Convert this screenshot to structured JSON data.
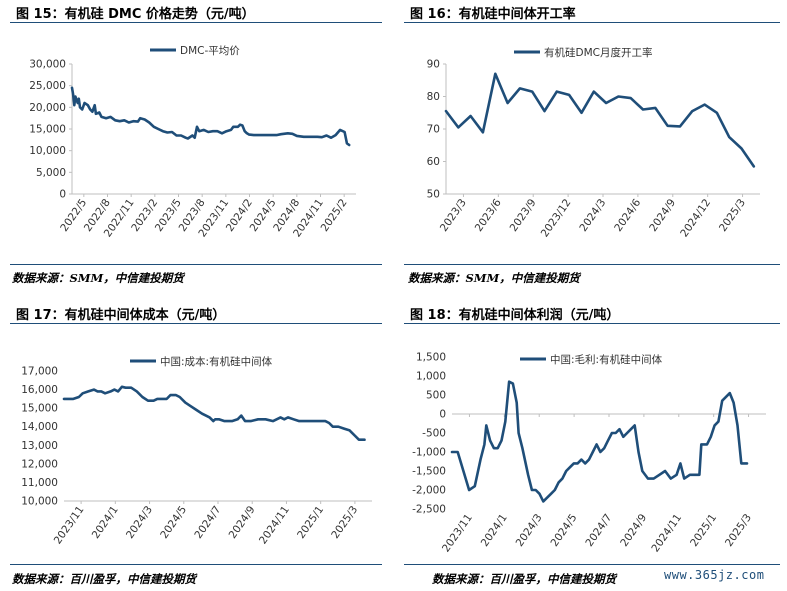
{
  "charts": [
    {
      "title": "图 15：有机硅 DMC 价格走势（元/吨）",
      "source": "数据来源：SMM，中信建投期货"
    },
    {
      "title": "图 16：有机硅中间体开工率",
      "source": "数据来源：SMM，中信建投期货"
    },
    {
      "title": "图 17：有机硅中间体成本（元/吨）",
      "source": "数据来源：百川盈孚，中信建投期货"
    },
    {
      "title": "图 18：有机硅中间体利润（元/吨）",
      "source": "数据来源：百川盈孚，中信建投期货"
    }
  ],
  "watermark": "www.365jz.com",
  "colors": {
    "series": "#1f4e79",
    "axis": "#bfbfbf",
    "rule": "#1f4e79"
  },
  "chart_data": [
    {
      "type": "line",
      "title": "图 15：有机硅 DMC 价格走势（元/吨）",
      "legend": "top-left",
      "series": [
        {
          "name": "DMC-平均价",
          "color": "#1f4e79"
        }
      ],
      "x_ticks": [
        "2022/5",
        "2022/8",
        "2022/11",
        "2023/2",
        "2023/5",
        "2023/8",
        "2023/11",
        "2024/2",
        "2024/5",
        "2024/8",
        "2024/11",
        "2025/2"
      ],
      "x_range": [
        0,
        12.5
      ],
      "y_ticks": [
        "0",
        "5,000",
        "10,000",
        "15,000",
        "20,000",
        "25,000",
        "30,000"
      ],
      "y_range": [
        0,
        30000
      ],
      "points": [
        [
          0,
          24500
        ],
        [
          0.05,
          23000
        ],
        [
          0.1,
          20500
        ],
        [
          0.15,
          22500
        ],
        [
          0.25,
          21000
        ],
        [
          0.3,
          22000
        ],
        [
          0.35,
          20000
        ],
        [
          0.45,
          19500
        ],
        [
          0.55,
          21000
        ],
        [
          0.7,
          20500
        ],
        [
          0.8,
          19500
        ],
        [
          0.9,
          19000
        ],
        [
          1.0,
          20500
        ],
        [
          1.05,
          18500
        ],
        [
          1.2,
          18800
        ],
        [
          1.3,
          17800
        ],
        [
          1.5,
          17500
        ],
        [
          1.7,
          17800
        ],
        [
          1.9,
          17000
        ],
        [
          2.1,
          16800
        ],
        [
          2.3,
          17000
        ],
        [
          2.5,
          16500
        ],
        [
          2.7,
          16800
        ],
        [
          2.9,
          16700
        ],
        [
          3.0,
          17500
        ],
        [
          3.2,
          17200
        ],
        [
          3.4,
          16500
        ],
        [
          3.6,
          15500
        ],
        [
          3.8,
          15000
        ],
        [
          4.0,
          14500
        ],
        [
          4.2,
          14200
        ],
        [
          4.4,
          14300
        ],
        [
          4.6,
          13500
        ],
        [
          4.8,
          13500
        ],
        [
          5.0,
          13000
        ],
        [
          5.1,
          12800
        ],
        [
          5.3,
          13500
        ],
        [
          5.4,
          13000
        ],
        [
          5.5,
          15500
        ],
        [
          5.6,
          14500
        ],
        [
          5.8,
          14800
        ],
        [
          6.0,
          14300
        ],
        [
          6.2,
          14500
        ],
        [
          6.4,
          14500
        ],
        [
          6.6,
          14000
        ],
        [
          6.8,
          14500
        ],
        [
          7.0,
          14800
        ],
        [
          7.1,
          15500
        ],
        [
          7.3,
          15500
        ],
        [
          7.4,
          16000
        ],
        [
          7.5,
          15800
        ],
        [
          7.6,
          14500
        ],
        [
          7.7,
          14000
        ],
        [
          7.8,
          13700
        ],
        [
          8.0,
          13600
        ],
        [
          8.5,
          13600
        ],
        [
          9.0,
          13600
        ],
        [
          9.2,
          13800
        ],
        [
          9.5,
          14000
        ],
        [
          9.7,
          13900
        ],
        [
          9.9,
          13400
        ],
        [
          10.2,
          13200
        ],
        [
          10.8,
          13200
        ],
        [
          11.0,
          13100
        ],
        [
          11.2,
          13500
        ],
        [
          11.4,
          13000
        ],
        [
          11.6,
          13600
        ],
        [
          11.8,
          14800
        ],
        [
          12.0,
          14300
        ],
        [
          12.1,
          11700
        ],
        [
          12.2,
          11300
        ]
      ]
    },
    {
      "type": "line",
      "title": "图 16：有机硅中间体开工率",
      "legend": "top-left",
      "series": [
        {
          "name": "有机硅DMC月度开工率",
          "color": "#1f4e79"
        }
      ],
      "x_ticks": [
        "2023/3",
        "2023/6",
        "2023/9",
        "2023/12",
        "2024/3",
        "2024/6",
        "2024/9",
        "2024/12",
        "2025/3"
      ],
      "x_range": [
        0,
        25.5
      ],
      "y_ticks": [
        "50",
        "60",
        "70",
        "80",
        "90"
      ],
      "y_range": [
        50,
        90
      ],
      "points": [
        [
          0,
          75.5
        ],
        [
          1,
          70.5
        ],
        [
          2,
          74
        ],
        [
          3,
          69
        ],
        [
          4,
          87
        ],
        [
          5,
          78
        ],
        [
          6,
          82.5
        ],
        [
          7,
          81.5
        ],
        [
          8,
          75.5
        ],
        [
          9,
          81.5
        ],
        [
          10,
          80.5
        ],
        [
          11,
          75
        ],
        [
          12,
          81.5
        ],
        [
          13,
          78
        ],
        [
          14,
          80
        ],
        [
          15,
          79.5
        ],
        [
          16,
          76
        ],
        [
          17,
          76.5
        ],
        [
          18,
          71
        ],
        [
          19,
          70.8
        ],
        [
          20,
          75.5
        ],
        [
          21,
          77.5
        ],
        [
          22,
          75
        ],
        [
          23,
          67.5
        ],
        [
          24,
          64
        ],
        [
          25,
          58.5
        ]
      ]
    },
    {
      "type": "line",
      "title": "图 17：有机硅中间体成本（元/吨）",
      "legend": "top-center",
      "series": [
        {
          "name": "中国:成本:有机硅中间体",
          "color": "#1f4e79"
        }
      ],
      "x_ticks": [
        "2023/11",
        "2024/1",
        "2024/3",
        "2024/5",
        "2024/7",
        "2024/9",
        "2024/11",
        "2025/1",
        "2025/3"
      ],
      "x_range": [
        0,
        16.5
      ],
      "y_ticks": [
        "10,000",
        "11,000",
        "12,000",
        "13,000",
        "14,000",
        "15,000",
        "16,000",
        "17,000"
      ],
      "y_range": [
        10000,
        17000
      ],
      "points": [
        [
          0,
          15500
        ],
        [
          0.5,
          15500
        ],
        [
          0.8,
          15600
        ],
        [
          1.0,
          15800
        ],
        [
          1.3,
          15900
        ],
        [
          1.6,
          16000
        ],
        [
          1.8,
          15900
        ],
        [
          2.0,
          15900
        ],
        [
          2.2,
          15800
        ],
        [
          2.5,
          15900
        ],
        [
          2.7,
          16000
        ],
        [
          2.9,
          15900
        ],
        [
          3.1,
          16150
        ],
        [
          3.3,
          16100
        ],
        [
          3.6,
          16100
        ],
        [
          3.9,
          15900
        ],
        [
          4.2,
          15600
        ],
        [
          4.5,
          15400
        ],
        [
          4.8,
          15400
        ],
        [
          5.0,
          15500
        ],
        [
          5.2,
          15500
        ],
        [
          5.5,
          15500
        ],
        [
          5.7,
          15700
        ],
        [
          6.0,
          15700
        ],
        [
          6.2,
          15600
        ],
        [
          6.5,
          15300
        ],
        [
          6.8,
          15100
        ],
        [
          7.1,
          14900
        ],
        [
          7.4,
          14700
        ],
        [
          7.6,
          14600
        ],
        [
          7.8,
          14500
        ],
        [
          8.0,
          14300
        ],
        [
          8.1,
          14400
        ],
        [
          8.3,
          14400
        ],
        [
          8.6,
          14300
        ],
        [
          9.0,
          14300
        ],
        [
          9.3,
          14400
        ],
        [
          9.5,
          14600
        ],
        [
          9.7,
          14300
        ],
        [
          10.0,
          14300
        ],
        [
          10.4,
          14400
        ],
        [
          10.8,
          14400
        ],
        [
          11.2,
          14300
        ],
        [
          11.6,
          14500
        ],
        [
          11.8,
          14400
        ],
        [
          12.0,
          14500
        ],
        [
          12.3,
          14400
        ],
        [
          12.6,
          14300
        ],
        [
          13.0,
          14300
        ],
        [
          13.5,
          14300
        ],
        [
          14.0,
          14300
        ],
        [
          14.2,
          14200
        ],
        [
          14.4,
          14000
        ],
        [
          14.7,
          14000
        ],
        [
          15.0,
          13900
        ],
        [
          15.3,
          13800
        ],
        [
          15.6,
          13500
        ],
        [
          15.8,
          13300
        ],
        [
          16.1,
          13300
        ]
      ]
    },
    {
      "type": "line",
      "title": "图 18：有机硅中间体利润（元/吨）",
      "legend": "top-center",
      "series": [
        {
          "name": "中国:毛利:有机硅中间体",
          "color": "#1f4e79"
        }
      ],
      "x_ticks": [
        "2023/11",
        "2024/1",
        "2024/3",
        "2024/5",
        "2024/7",
        "2024/9",
        "2024/11",
        "2025/1",
        "2025/3"
      ],
      "x_range": [
        0,
        16.5
      ],
      "y_ticks": [
        "-2,500",
        "-2,000",
        "-1,500",
        "-1,000",
        "-500",
        "0",
        "500",
        "1,000",
        "1,500"
      ],
      "y_range": [
        -2500,
        1500
      ],
      "points": [
        [
          0,
          -1000
        ],
        [
          0.3,
          -1000
        ],
        [
          0.6,
          -1500
        ],
        [
          0.9,
          -2000
        ],
        [
          1.2,
          -1900
        ],
        [
          1.5,
          -1200
        ],
        [
          1.7,
          -800
        ],
        [
          1.8,
          -300
        ],
        [
          2.0,
          -700
        ],
        [
          2.2,
          -900
        ],
        [
          2.4,
          -900
        ],
        [
          2.6,
          -700
        ],
        [
          2.8,
          -200
        ],
        [
          3.0,
          850
        ],
        [
          3.2,
          800
        ],
        [
          3.4,
          300
        ],
        [
          3.5,
          -500
        ],
        [
          3.7,
          -900
        ],
        [
          4.0,
          -1600
        ],
        [
          4.2,
          -2000
        ],
        [
          4.4,
          -2000
        ],
        [
          4.6,
          -2100
        ],
        [
          4.8,
          -2300
        ],
        [
          5.0,
          -2200
        ],
        [
          5.2,
          -2100
        ],
        [
          5.4,
          -2000
        ],
        [
          5.6,
          -1800
        ],
        [
          5.8,
          -1700
        ],
        [
          6.0,
          -1500
        ],
        [
          6.2,
          -1400
        ],
        [
          6.4,
          -1300
        ],
        [
          6.6,
          -1300
        ],
        [
          6.8,
          -1200
        ],
        [
          7.0,
          -1300
        ],
        [
          7.2,
          -1200
        ],
        [
          7.4,
          -1000
        ],
        [
          7.6,
          -800
        ],
        [
          7.8,
          -1000
        ],
        [
          8.0,
          -900
        ],
        [
          8.2,
          -700
        ],
        [
          8.4,
          -500
        ],
        [
          8.6,
          -500
        ],
        [
          8.8,
          -400
        ],
        [
          9.0,
          -600
        ],
        [
          9.2,
          -500
        ],
        [
          9.4,
          -400
        ],
        [
          9.6,
          -300
        ],
        [
          9.8,
          -1000
        ],
        [
          10.0,
          -1500
        ],
        [
          10.3,
          -1700
        ],
        [
          10.6,
          -1700
        ],
        [
          10.9,
          -1600
        ],
        [
          11.2,
          -1500
        ],
        [
          11.5,
          -1700
        ],
        [
          11.8,
          -1600
        ],
        [
          12.0,
          -1300
        ],
        [
          12.2,
          -1700
        ],
        [
          12.5,
          -1600
        ],
        [
          12.8,
          -1600
        ],
        [
          13.0,
          -1600
        ],
        [
          13.1,
          -800
        ],
        [
          13.4,
          -800
        ],
        [
          13.6,
          -600
        ],
        [
          13.8,
          -300
        ],
        [
          14.0,
          -200
        ],
        [
          14.2,
          350
        ],
        [
          14.6,
          550
        ],
        [
          14.8,
          300
        ],
        [
          15.0,
          -300
        ],
        [
          15.2,
          -1300
        ],
        [
          15.5,
          -1300
        ]
      ]
    }
  ]
}
